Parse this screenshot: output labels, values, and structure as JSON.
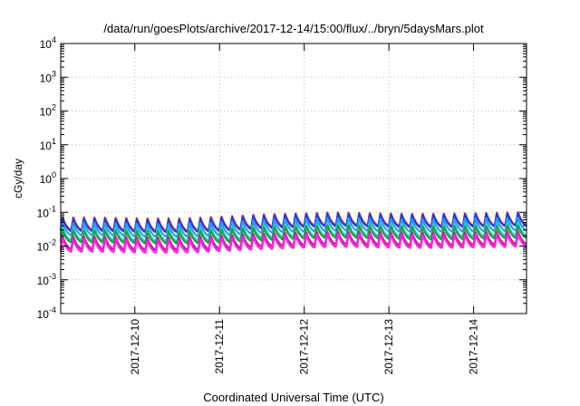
{
  "chart_data": {
    "type": "line",
    "title": "/data/run/goesPlots/archive/2017-12-14/15:00/flux/../bryn/5daysMars.plot",
    "xlabel": "Coordinated Universal Time (UTC)",
    "ylabel": "cGy/day",
    "yscale": "log",
    "ylim": [
      0.0001,
      10000
    ],
    "yticks": [
      {
        "base": "10",
        "exp": "4"
      },
      {
        "base": "10",
        "exp": "3"
      },
      {
        "base": "10",
        "exp": "2"
      },
      {
        "base": "10",
        "exp": "1"
      },
      {
        "base": "10",
        "exp": "0"
      },
      {
        "base": "10",
        "exp": "-1"
      },
      {
        "base": "10",
        "exp": "-2"
      },
      {
        "base": "10",
        "exp": "-3"
      },
      {
        "base": "10",
        "exp": "-4"
      }
    ],
    "xlim": [
      "2017-12-09 03:00",
      "2017-12-14 15:00"
    ],
    "xticks": [
      "2017-12-10",
      "2017-12-11",
      "2017-12-12",
      "2017-12-13",
      "2017-12-14"
    ],
    "grid": true,
    "legend": "none",
    "cycle_period_hours": 3,
    "series": [
      {
        "color": "#ff2020",
        "peak": [
          0.07,
          0.07,
          0.066,
          0.066,
          0.073,
          0.085,
          0.092,
          0.099,
          0.094,
          0.09,
          0.092,
          0.096,
          0.103
        ],
        "trough": [
          0.03,
          0.03,
          0.028,
          0.028,
          0.031,
          0.037,
          0.04,
          0.043,
          0.041,
          0.039,
          0.04,
          0.041,
          0.044
        ]
      },
      {
        "color": "#1f3fe0",
        "peak": [
          0.066,
          0.066,
          0.062,
          0.062,
          0.069,
          0.08,
          0.087,
          0.093,
          0.089,
          0.085,
          0.087,
          0.091,
          0.097
        ],
        "trough": [
          0.028,
          0.028,
          0.026,
          0.026,
          0.029,
          0.034,
          0.037,
          0.04,
          0.038,
          0.036,
          0.037,
          0.039,
          0.042
        ]
      },
      {
        "color": "#2a9df4",
        "peak": [
          0.048,
          0.048,
          0.045,
          0.045,
          0.05,
          0.058,
          0.063,
          0.068,
          0.065,
          0.062,
          0.063,
          0.066,
          0.071
        ],
        "trough": [
          0.021,
          0.021,
          0.019,
          0.019,
          0.021,
          0.025,
          0.027,
          0.029,
          0.028,
          0.027,
          0.027,
          0.028,
          0.03
        ]
      },
      {
        "color": "#20d0c0",
        "peak": [
          0.034,
          0.034,
          0.032,
          0.032,
          0.035,
          0.041,
          0.044,
          0.047,
          0.045,
          0.043,
          0.044,
          0.046,
          0.049
        ],
        "trough": [
          0.015,
          0.015,
          0.014,
          0.014,
          0.015,
          0.018,
          0.019,
          0.021,
          0.02,
          0.019,
          0.019,
          0.02,
          0.021
        ]
      },
      {
        "color": "#20a040",
        "peak": [
          0.029,
          0.029,
          0.027,
          0.027,
          0.03,
          0.035,
          0.038,
          0.041,
          0.039,
          0.037,
          0.038,
          0.039,
          0.042
        ],
        "trough": [
          0.013,
          0.013,
          0.012,
          0.012,
          0.013,
          0.015,
          0.017,
          0.018,
          0.017,
          0.016,
          0.016,
          0.017,
          0.018
        ]
      },
      {
        "color": "#c020a0",
        "peak": [
          0.019,
          0.019,
          0.018,
          0.018,
          0.02,
          0.023,
          0.025,
          0.027,
          0.026,
          0.025,
          0.025,
          0.026,
          0.028
        ],
        "trough": [
          0.0082,
          0.0082,
          0.0077,
          0.0077,
          0.0085,
          0.0099,
          0.0107,
          0.0115,
          0.011,
          0.0105,
          0.0107,
          0.0112,
          0.012
        ]
      },
      {
        "color": "#ff20e0",
        "peak": [
          0.016,
          0.016,
          0.015,
          0.015,
          0.017,
          0.019,
          0.021,
          0.023,
          0.022,
          0.021,
          0.021,
          0.022,
          0.024
        ],
        "trough": [
          0.0068,
          0.0068,
          0.0064,
          0.0064,
          0.0071,
          0.0082,
          0.0089,
          0.0096,
          0.0092,
          0.0088,
          0.0089,
          0.0093,
          0.01
        ]
      }
    ]
  }
}
